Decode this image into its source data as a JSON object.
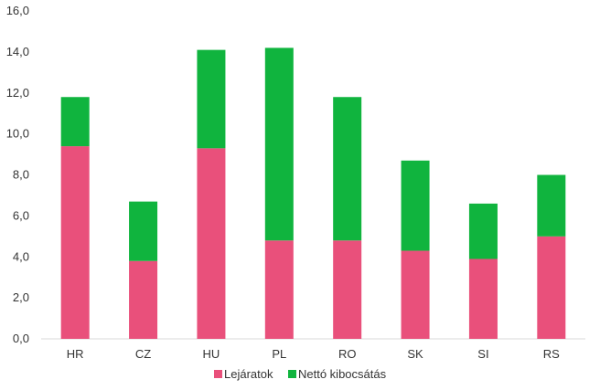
{
  "chart_data": {
    "type": "bar",
    "stacked": true,
    "categories": [
      "HR",
      "CZ",
      "HU",
      "PL",
      "RO",
      "SK",
      "SI",
      "RS"
    ],
    "series": [
      {
        "name": "Lejáratok",
        "color": "#e9507b",
        "values": [
          9.4,
          3.8,
          9.3,
          4.8,
          4.8,
          4.3,
          3.9,
          5.0
        ]
      },
      {
        "name": "Nettó kibocsátás",
        "color": "#10b43e",
        "values": [
          2.4,
          2.9,
          4.8,
          9.4,
          7.0,
          4.4,
          2.7,
          3.0
        ]
      }
    ],
    "ylim": [
      0,
      16
    ],
    "yticks": [
      "0,0",
      "2,0",
      "4,0",
      "6,0",
      "8,0",
      "10,0",
      "12,0",
      "14,0",
      "16,0"
    ],
    "grid": false,
    "legend_position": "bottom"
  }
}
